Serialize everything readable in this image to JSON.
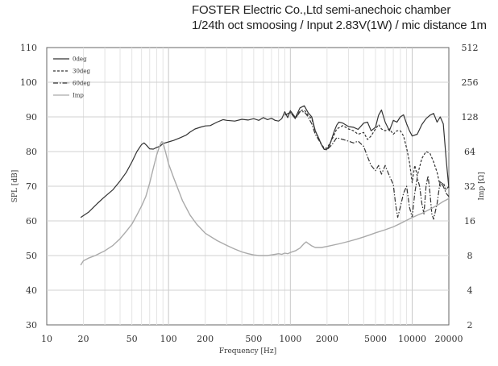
{
  "header": {
    "line1": "FOSTER Electric Co.,Ltd  semi-anechoic chamber",
    "line2": "1/24th oct smoosing / Input 2.83V(1W) / mic distance 1m"
  },
  "chart_data": {
    "type": "line",
    "xlabel": "Frequency [Hz]",
    "ylabel": "SPL [dB]",
    "y2label": "Imp [Ω]",
    "xscale": "log",
    "xlim": [
      10,
      20000
    ],
    "ylim": [
      30,
      110
    ],
    "y2lim": [
      2,
      512
    ],
    "y2scale": "log2",
    "grid": true,
    "legend_position": "top-left",
    "x_ticks": [
      "10",
      "20",
      "50",
      "100",
      "200",
      "500",
      "1000",
      "2000",
      "5000",
      "10000",
      "20000"
    ],
    "y_ticks": [
      "30",
      "40",
      "50",
      "60",
      "70",
      "80",
      "90",
      "100",
      "110"
    ],
    "y2_ticks": [
      "2",
      "4",
      "8",
      "16",
      "32",
      "64",
      "128",
      "256",
      "512"
    ],
    "series": [
      {
        "name": "0deg",
        "axis": "left",
        "color": "#333333",
        "dash": "",
        "points": [
          [
            19,
            61
          ],
          [
            22,
            62.5
          ],
          [
            26,
            65
          ],
          [
            30,
            67
          ],
          [
            35,
            69
          ],
          [
            40,
            71.5
          ],
          [
            45,
            74
          ],
          [
            50,
            77
          ],
          [
            55,
            80
          ],
          [
            60,
            82
          ],
          [
            63,
            82.5
          ],
          [
            66,
            81.8
          ],
          [
            70,
            80.8
          ],
          [
            75,
            80.7
          ],
          [
            80,
            81.2
          ],
          [
            85,
            81.5
          ],
          [
            90,
            82.3
          ],
          [
            100,
            82.8
          ],
          [
            110,
            83.2
          ],
          [
            125,
            84
          ],
          [
            140,
            84.8
          ],
          [
            150,
            85.6
          ],
          [
            165,
            86.5
          ],
          [
            185,
            87.1
          ],
          [
            200,
            87.4
          ],
          [
            220,
            87.5
          ],
          [
            250,
            88.5
          ],
          [
            280,
            89.2
          ],
          [
            300,
            89
          ],
          [
            350,
            88.8
          ],
          [
            400,
            89.3
          ],
          [
            450,
            89.1
          ],
          [
            500,
            89.5
          ],
          [
            550,
            89
          ],
          [
            600,
            89.8
          ],
          [
            650,
            89.2
          ],
          [
            700,
            89.6
          ],
          [
            750,
            89
          ],
          [
            800,
            88.8
          ],
          [
            850,
            89.5
          ],
          [
            900,
            91.5
          ],
          [
            950,
            89.8
          ],
          [
            1000,
            91.8
          ],
          [
            1100,
            89.8
          ],
          [
            1200,
            92.6
          ],
          [
            1300,
            93.2
          ],
          [
            1400,
            91.2
          ],
          [
            1500,
            90
          ],
          [
            1600,
            86
          ],
          [
            1700,
            84
          ],
          [
            1800,
            82
          ],
          [
            1900,
            80.6
          ],
          [
            2000,
            80.7
          ],
          [
            2100,
            81.8
          ],
          [
            2200,
            84
          ],
          [
            2300,
            86
          ],
          [
            2400,
            87.6
          ],
          [
            2500,
            88.5
          ],
          [
            2700,
            88.2
          ],
          [
            3000,
            87.2
          ],
          [
            3300,
            87
          ],
          [
            3600,
            86.4
          ],
          [
            4000,
            88.2
          ],
          [
            4300,
            88.5
          ],
          [
            4600,
            86
          ],
          [
            5000,
            87
          ],
          [
            5300,
            90.5
          ],
          [
            5600,
            92
          ],
          [
            6000,
            88.5
          ],
          [
            6500,
            86
          ],
          [
            7000,
            89
          ],
          [
            7500,
            88.5
          ],
          [
            8000,
            90
          ],
          [
            8500,
            90.6
          ],
          [
            9000,
            88
          ],
          [
            9500,
            86
          ],
          [
            10000,
            84.5
          ],
          [
            11000,
            85
          ],
          [
            12000,
            87.8
          ],
          [
            13000,
            89.5
          ],
          [
            14000,
            90.5
          ],
          [
            15000,
            91
          ],
          [
            16000,
            88.5
          ],
          [
            17000,
            90
          ],
          [
            18000,
            88
          ],
          [
            19000,
            78
          ],
          [
            20000,
            69.5
          ]
        ]
      },
      {
        "name": "30deg",
        "axis": "left",
        "color": "#333333",
        "dash": "3,2",
        "points": [
          [
            900,
            90.5
          ],
          [
            1000,
            91.3
          ],
          [
            1100,
            89.5
          ],
          [
            1200,
            91.8
          ],
          [
            1300,
            92
          ],
          [
            1400,
            90.5
          ],
          [
            1500,
            89.5
          ],
          [
            1600,
            86
          ],
          [
            1700,
            84
          ],
          [
            1800,
            82
          ],
          [
            1900,
            81
          ],
          [
            2000,
            81
          ],
          [
            2200,
            83.5
          ],
          [
            2400,
            86.5
          ],
          [
            2700,
            87.5
          ],
          [
            3000,
            86.5
          ],
          [
            3300,
            86
          ],
          [
            3600,
            85
          ],
          [
            4000,
            85.5
          ],
          [
            4300,
            83.5
          ],
          [
            4600,
            84.5
          ],
          [
            5000,
            86.5
          ],
          [
            5300,
            87.8
          ],
          [
            5600,
            86.5
          ],
          [
            6000,
            86
          ],
          [
            6500,
            86.5
          ],
          [
            7000,
            85
          ],
          [
            7500,
            86
          ],
          [
            8000,
            86
          ],
          [
            8500,
            84.5
          ],
          [
            9000,
            81
          ],
          [
            9500,
            77
          ],
          [
            10000,
            71
          ],
          [
            10500,
            76
          ],
          [
            11000,
            73
          ],
          [
            12000,
            78
          ],
          [
            13000,
            80
          ],
          [
            14000,
            79.5
          ],
          [
            15000,
            77
          ],
          [
            16000,
            74
          ],
          [
            17000,
            70
          ],
          [
            18000,
            71
          ],
          [
            19000,
            69
          ],
          [
            20000,
            70
          ]
        ]
      },
      {
        "name": "60deg",
        "axis": "left",
        "color": "#333333",
        "dash": "6,2,1.5,2",
        "points": [
          [
            900,
            90.5
          ],
          [
            1000,
            91.3
          ],
          [
            1100,
            89.5
          ],
          [
            1200,
            91.5
          ],
          [
            1300,
            91.5
          ],
          [
            1400,
            90
          ],
          [
            1500,
            88
          ],
          [
            1600,
            85
          ],
          [
            1700,
            83.5
          ],
          [
            1800,
            82
          ],
          [
            1900,
            80.5
          ],
          [
            2000,
            80.5
          ],
          [
            2200,
            82
          ],
          [
            2400,
            84
          ],
          [
            2700,
            83.5
          ],
          [
            3000,
            83
          ],
          [
            3300,
            82.5
          ],
          [
            3600,
            83
          ],
          [
            4000,
            81.5
          ],
          [
            4300,
            78.5
          ],
          [
            4600,
            76
          ],
          [
            5000,
            74.5
          ],
          [
            5300,
            76
          ],
          [
            5600,
            73.5
          ],
          [
            6000,
            76
          ],
          [
            6500,
            73
          ],
          [
            7000,
            70.5
          ],
          [
            7300,
            65
          ],
          [
            7600,
            61
          ],
          [
            8000,
            64
          ],
          [
            8500,
            68
          ],
          [
            9000,
            70
          ],
          [
            9500,
            64
          ],
          [
            10000,
            61
          ],
          [
            10500,
            68
          ],
          [
            11000,
            72.5
          ],
          [
            11500,
            70
          ],
          [
            12000,
            65
          ],
          [
            12500,
            62
          ],
          [
            13000,
            70
          ],
          [
            13500,
            73
          ],
          [
            14000,
            68
          ],
          [
            14500,
            62
          ],
          [
            15000,
            60.5
          ],
          [
            16000,
            65
          ],
          [
            17000,
            71.5
          ],
          [
            18000,
            70
          ],
          [
            19000,
            68
          ],
          [
            20000,
            67
          ]
        ]
      },
      {
        "name": "Imp",
        "axis": "right",
        "color": "#aaaaaa",
        "dash": "",
        "points": [
          [
            19,
            6.6
          ],
          [
            20,
            7.2
          ],
          [
            22,
            7.6
          ],
          [
            25,
            8.0
          ],
          [
            30,
            8.8
          ],
          [
            35,
            9.8
          ],
          [
            40,
            11.2
          ],
          [
            45,
            13
          ],
          [
            50,
            15
          ],
          [
            55,
            18
          ],
          [
            60,
            21.5
          ],
          [
            65,
            26
          ],
          [
            70,
            34
          ],
          [
            75,
            46
          ],
          [
            80,
            60
          ],
          [
            85,
            73
          ],
          [
            88,
            78
          ],
          [
            90,
            77
          ],
          [
            95,
            62
          ],
          [
            100,
            50
          ],
          [
            110,
            38
          ],
          [
            120,
            30
          ],
          [
            130,
            24
          ],
          [
            150,
            18
          ],
          [
            170,
            15
          ],
          [
            200,
            12.5
          ],
          [
            250,
            10.8
          ],
          [
            300,
            9.8
          ],
          [
            350,
            9.1
          ],
          [
            400,
            8.6
          ],
          [
            450,
            8.3
          ],
          [
            500,
            8.1
          ],
          [
            550,
            8.0
          ],
          [
            600,
            8.0
          ],
          [
            650,
            8.0
          ],
          [
            700,
            8.1
          ],
          [
            750,
            8.2
          ],
          [
            800,
            8.3
          ],
          [
            850,
            8.2
          ],
          [
            900,
            8.4
          ],
          [
            950,
            8.3
          ],
          [
            1000,
            8.5
          ],
          [
            1100,
            8.8
          ],
          [
            1200,
            9.3
          ],
          [
            1300,
            10.2
          ],
          [
            1350,
            10.5
          ],
          [
            1400,
            10.2
          ],
          [
            1500,
            9.7
          ],
          [
            1600,
            9.4
          ],
          [
            1800,
            9.4
          ],
          [
            2000,
            9.6
          ],
          [
            2500,
            10.1
          ],
          [
            3000,
            10.6
          ],
          [
            3500,
            11.1
          ],
          [
            4000,
            11.6
          ],
          [
            4500,
            12.1
          ],
          [
            5000,
            12.6
          ],
          [
            6000,
            13.4
          ],
          [
            7000,
            14.2
          ],
          [
            8000,
            15.2
          ],
          [
            9000,
            16.2
          ],
          [
            10000,
            17.1
          ],
          [
            11000,
            17.9
          ],
          [
            12000,
            18.6
          ],
          [
            13000,
            19.4
          ],
          [
            14000,
            20.2
          ],
          [
            15000,
            21
          ],
          [
            16000,
            21.8
          ],
          [
            17000,
            22.7
          ],
          [
            18000,
            23.6
          ],
          [
            19000,
            24.3
          ],
          [
            20000,
            25
          ]
        ]
      }
    ]
  }
}
